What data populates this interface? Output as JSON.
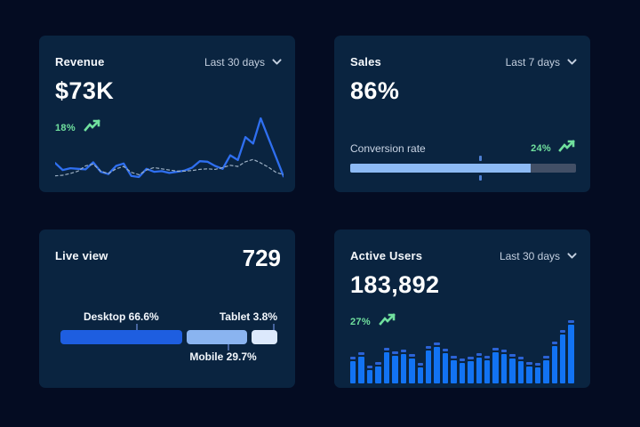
{
  "page": {
    "bg": "#040c22",
    "card_bg": "#0a2440",
    "accent_green": "#70e09e"
  },
  "cards": {
    "revenue": {
      "title": "Revenue",
      "range_label": "Last 30 days",
      "value": "$73K",
      "trend": "18%",
      "trend_icon": "trending-up-icon",
      "chart_data": {
        "type": "line",
        "ylim": [
          0,
          100
        ],
        "grid": false,
        "legend": "none",
        "series": [
          {
            "name": "current",
            "style": "solid",
            "color": "#2f6ff0",
            "values": [
              24,
              12,
              15,
              14,
              13,
              25,
              9,
              5,
              19,
              23,
              2,
              0,
              14,
              9,
              10,
              7,
              9,
              11,
              16,
              27,
              26,
              19,
              14,
              37,
              29,
              68,
              57,
              100,
              67,
              34,
              1
            ]
          },
          {
            "name": "previous",
            "style": "dashed",
            "color": "#9db0c4",
            "values": [
              2,
              3,
              6,
              10,
              19,
              22,
              10,
              6,
              14,
              18,
              8,
              4,
              12,
              16,
              14,
              12,
              10,
              10,
              11,
              13,
              14,
              13,
              16,
              20,
              18,
              26,
              30,
              24,
              17,
              8,
              4
            ]
          }
        ]
      }
    },
    "sales": {
      "title": "Sales",
      "range_label": "Last 7 days",
      "value": "86%",
      "metric_label": "Conversion rate",
      "trend": "24%",
      "trend_icon": "trending-up-icon",
      "chart_data": {
        "type": "bar",
        "kind": "progress",
        "fill_pct": 80,
        "marker_pct": 57,
        "fill_color": "#8dbaf4",
        "track_color": "#424f66",
        "marker_color": "#4d7fd2"
      }
    },
    "live_view": {
      "title": "Live view",
      "value": "729",
      "chart_data": {
        "type": "bar",
        "kind": "stacked",
        "segments": [
          {
            "label": "Desktop 66.6%",
            "name": "desktop",
            "value": 66.6,
            "display_grow": 56,
            "color": "#1e5ee0",
            "label_pos": "top",
            "label_center_pct": 28,
            "tick_pct": 35
          },
          {
            "label": "Mobile 29.7%",
            "name": "mobile",
            "value": 29.7,
            "display_grow": 28,
            "color": "#8ab4f0",
            "label_pos": "bottom",
            "label_center_pct": 75,
            "tick_pct": 77
          },
          {
            "label": "Tablet 3.8%",
            "name": "tablet",
            "value": 3.8,
            "display_grow": 12,
            "color": "#dce9fc",
            "label_pos": "top",
            "label_align": "right",
            "tick_pct": 98
          }
        ]
      }
    },
    "active_users": {
      "title": "Active Users",
      "range_label": "Last 30 days",
      "value": "183,892",
      "trend": "27%",
      "trend_icon": "trending-up-icon",
      "chart_data": {
        "type": "bar",
        "ylim": [
          0,
          100
        ],
        "bar_color": "#1273f3",
        "cap_color": "#2c63d6",
        "values": [
          34,
          42,
          18,
          24,
          50,
          44,
          46,
          38,
          22,
          54,
          60,
          48,
          36,
          30,
          34,
          40,
          36,
          50,
          46,
          38,
          34,
          24,
          22,
          36,
          62,
          82,
          100
        ]
      }
    }
  }
}
